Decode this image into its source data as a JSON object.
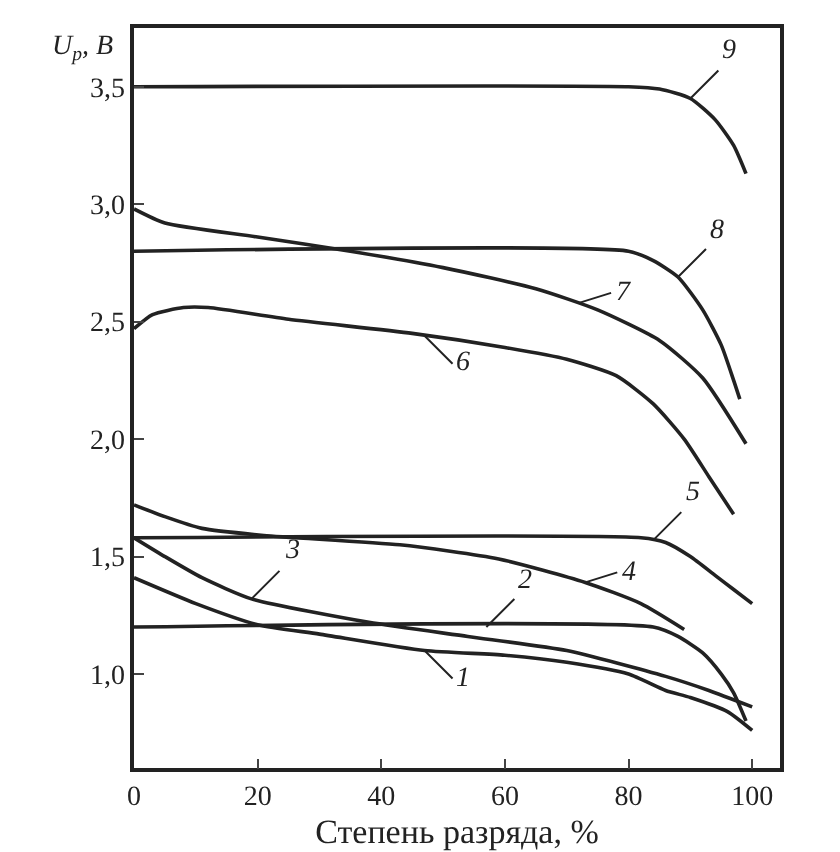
{
  "chart_data": {
    "type": "line",
    "xlabel": "Степень разряда, %",
    "ylabel": "U$_{р}$, В",
    "xlim": [
      0,
      104.5
    ],
    "ylim": [
      0.6,
      3.75
    ],
    "xticks": [
      0,
      20,
      40,
      60,
      80,
      100
    ],
    "yticks": [
      {
        "value": 1,
        "label": "1,0"
      },
      {
        "value": 1.5,
        "label": "1,5"
      },
      {
        "value": 2,
        "label": "2,0"
      },
      {
        "value": 2.5,
        "label": "2,5"
      },
      {
        "value": 3,
        "label": "3,0"
      },
      {
        "value": 3.5,
        "label": "3,5"
      }
    ],
    "grid": false,
    "marker": "none",
    "line_style": "solid",
    "series": [
      {
        "color": "#222222",
        "x": [
          0,
          10,
          20,
          30,
          47,
          60,
          70,
          80,
          86,
          90,
          96,
          100
        ],
        "values": [
          1.41,
          1.3,
          1.21,
          1.17,
          1.1,
          1.08,
          1.05,
          1.0,
          0.93,
          0.9,
          0.84,
          0.76
        ]
      },
      {
        "color": "#222222",
        "x": [
          0,
          84,
          88,
          92,
          95,
          97,
          99
        ],
        "values": [
          1.2,
          1.2,
          1.16,
          1.09,
          1.0,
          0.92,
          0.8
        ]
      },
      {
        "color": "#222222",
        "x": [
          0,
          5,
          11,
          19,
          38,
          54,
          70,
          86,
          93,
          100
        ],
        "values": [
          1.58,
          1.5,
          1.41,
          1.32,
          1.22,
          1.16,
          1.1,
          0.99,
          0.93,
          0.86
        ]
      },
      {
        "color": "#222222",
        "x": [
          0,
          5,
          11,
          21,
          43,
          59,
          73,
          82,
          89
        ],
        "values": [
          1.72,
          1.67,
          1.62,
          1.59,
          1.55,
          1.49,
          1.39,
          1.3,
          1.19
        ]
      },
      {
        "color": "#222222",
        "x": [
          0,
          82,
          86,
          90,
          94,
          97,
          100
        ],
        "values": [
          1.58,
          1.58,
          1.56,
          1.5,
          1.42,
          1.36,
          1.3
        ]
      },
      {
        "color": "#222222",
        "x": [
          0,
          3,
          8,
          12,
          25,
          45,
          60,
          70,
          78,
          84,
          89,
          93,
          97
        ],
        "values": [
          2.47,
          2.53,
          2.56,
          2.56,
          2.51,
          2.45,
          2.39,
          2.34,
          2.27,
          2.15,
          2.0,
          1.84,
          1.68
        ]
      },
      {
        "color": "#222222",
        "x": [
          0,
          5,
          20,
          35,
          50,
          65,
          75,
          85,
          92,
          99
        ],
        "values": [
          2.98,
          2.92,
          2.86,
          2.8,
          2.73,
          2.64,
          2.55,
          2.42,
          2.26,
          1.98
        ]
      },
      {
        "color": "#222222",
        "x": [
          0,
          80,
          84,
          88,
          92,
          95,
          97,
          98
        ],
        "values": [
          2.8,
          2.8,
          2.76,
          2.69,
          2.55,
          2.4,
          2.25,
          2.17
        ]
      },
      {
        "color": "#222222",
        "x": [
          0,
          80,
          85,
          90,
          94,
          97,
          99
        ],
        "values": [
          3.5,
          3.5,
          3.49,
          3.45,
          3.36,
          3.25,
          3.13
        ]
      }
    ],
    "annotations": [
      {
        "text": "1",
        "x": 47,
        "y": 1.1
      },
      {
        "text": "2",
        "x": 57,
        "y": 1.2
      },
      {
        "text": "3",
        "x": 19,
        "y": 1.32
      },
      {
        "text": "4",
        "x": 73,
        "y": 1.39
      },
      {
        "text": "5",
        "x": 84,
        "y": 1.57
      },
      {
        "text": "6",
        "x": 47,
        "y": 2.44
      },
      {
        "text": "7",
        "x": 72,
        "y": 2.58
      },
      {
        "text": "8",
        "x": 88,
        "y": 2.69
      },
      {
        "text": "9",
        "x": 90,
        "y": 3.45
      }
    ]
  }
}
